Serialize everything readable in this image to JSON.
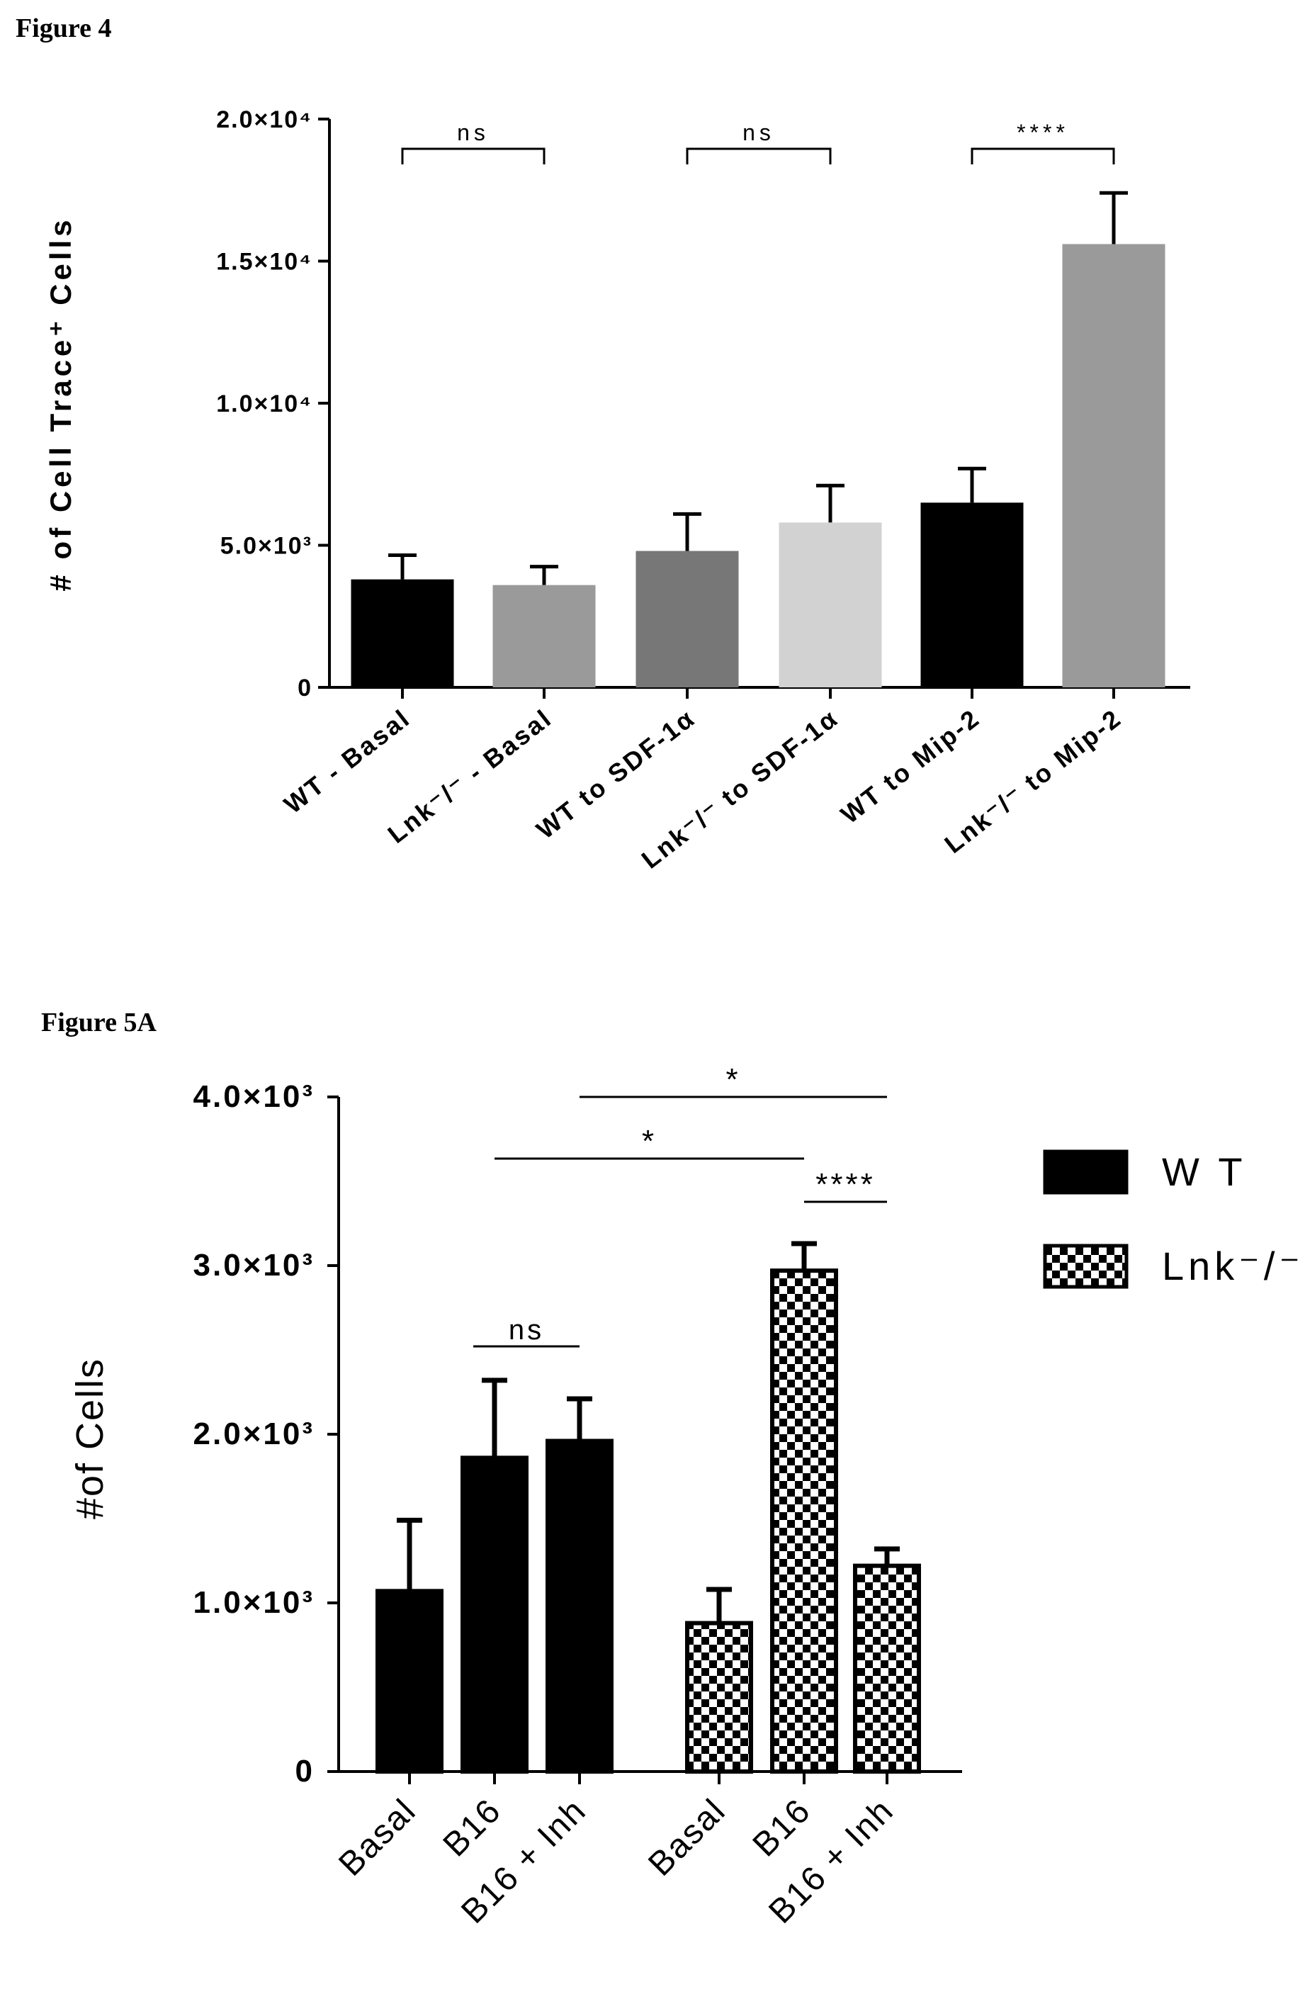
{
  "figure4": {
    "title": "Figure 4",
    "chart_data": {
      "type": "bar",
      "ylabel": "# of Cell Trace⁺ Cells",
      "ylim": [
        0,
        20000
      ],
      "yticks": [
        {
          "value": 0,
          "label": "0"
        },
        {
          "value": 5000,
          "label": "5.0×10³"
        },
        {
          "value": 10000,
          "label": "1.0×10⁴"
        },
        {
          "value": 15000,
          "label": "1.5×10⁴"
        },
        {
          "value": 20000,
          "label": "2.0×10⁴"
        }
      ],
      "categories": [
        "WT - Basal",
        "Lnk⁻/⁻ - Basal",
        "WT to SDF-1α",
        "Lnk⁻/⁻ to SDF-1α",
        "WT to Mip-2",
        "Lnk⁻/⁻ to Mip-2"
      ],
      "values": [
        3800,
        3600,
        4800,
        5800,
        6500,
        15600
      ],
      "errors": [
        850,
        650,
        1300,
        1300,
        1200,
        1800
      ],
      "colors": [
        "#000000",
        "#9a9a9a",
        "#777777",
        "#d2d2d2",
        "#000000",
        "#9a9a9a"
      ],
      "annotations": [
        {
          "from": 0,
          "to": 1,
          "label": "ns"
        },
        {
          "from": 2,
          "to": 3,
          "label": "ns"
        },
        {
          "from": 4,
          "to": 5,
          "label": "****"
        }
      ]
    }
  },
  "figure5a": {
    "title": "Figure 5A",
    "chart_data": {
      "type": "bar",
      "ylabel": "#of Cells",
      "ylim": [
        0,
        4000
      ],
      "yticks": [
        {
          "value": 0,
          "label": "0"
        },
        {
          "value": 1000,
          "label": "1.0×10³"
        },
        {
          "value": 2000,
          "label": "2.0×10³"
        },
        {
          "value": 3000,
          "label": "3.0×10³"
        },
        {
          "value": 4000,
          "label": "4.0×10³"
        }
      ],
      "categories": [
        "Basal",
        "B16",
        "B16 + Inh",
        "Basal",
        "B16",
        "B16 + Inh"
      ],
      "series_index": [
        0,
        0,
        0,
        1,
        1,
        1
      ],
      "values": [
        1070,
        1860,
        1960,
        880,
        2970,
        1220
      ],
      "errors": [
        420,
        460,
        250,
        200,
        160,
        100
      ],
      "legend": [
        {
          "label": "W T",
          "pattern": "solid"
        },
        {
          "label": "Lnk⁻/⁻",
          "pattern": "checker"
        }
      ],
      "legend_position": "top-right",
      "annotations": [
        {
          "from": 1,
          "to": 2,
          "label": "ns"
        },
        {
          "from": 1,
          "to": 4,
          "label": "*"
        },
        {
          "from": 2,
          "to": 5,
          "label": "*"
        },
        {
          "from": 4,
          "to": 5,
          "label": "****"
        }
      ]
    }
  }
}
